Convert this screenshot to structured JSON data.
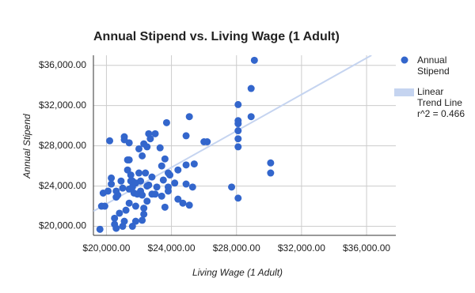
{
  "chart_data": {
    "type": "scatter",
    "title": "Annual Stipend vs. Living Wage (1 Adult)",
    "x_label": "Living Wage (1 Adult)",
    "y_label": "Annual Stipend",
    "xlim": [
      19200,
      37800
    ],
    "ylim": [
      19100,
      37000
    ],
    "xticks": [
      {
        "value": 20000,
        "label": "$20,000.00"
      },
      {
        "value": 24000,
        "label": "$24,000.00"
      },
      {
        "value": 28000,
        "label": "$28,000.00"
      },
      {
        "value": 32000,
        "label": "$32,000.00"
      },
      {
        "value": 36000,
        "label": "$36,000.00"
      }
    ],
    "yticks": [
      {
        "value": 20000,
        "label": "$20,000.00"
      },
      {
        "value": 24000,
        "label": "$24,000.00"
      },
      {
        "value": 28000,
        "label": "$28,000.00"
      },
      {
        "value": 32000,
        "label": "$32,000.00"
      },
      {
        "value": 36000,
        "label": "$36,000.00"
      }
    ],
    "grid": true,
    "legend": "right",
    "series": [
      {
        "name": "Annual Stipend",
        "color": "#3366cc",
        "x": [
          29100,
          28900,
          28900,
          28100,
          28100,
          28100,
          28100,
          28100,
          28100,
          28100,
          30100,
          30100,
          27700,
          26200,
          26000,
          25100,
          24900,
          24900,
          25400,
          23700,
          23000,
          23300,
          23600,
          23400,
          23500,
          23800,
          23800,
          23600,
          23400,
          23800,
          23900,
          24200,
          24900,
          25300,
          24400,
          24700,
          25100,
          22700,
          22600,
          22500,
          22300,
          22200,
          22000,
          21400,
          21100,
          21100,
          20200,
          21300,
          21300,
          21400,
          21400,
          21500,
          21600,
          21700,
          21800,
          22100,
          22100,
          22000,
          21900,
          22300,
          22800,
          23000,
          23100,
          22600,
          22500,
          22200,
          22500,
          22300,
          22200,
          21800,
          21600,
          21100,
          21200,
          21000,
          20900,
          20700,
          20600,
          20300,
          20600,
          20500,
          20300,
          20100,
          19700,
          19900,
          19800,
          19600,
          20500,
          20600,
          20800,
          21000,
          21400,
          21600,
          21800,
          21500,
          24400,
          22400,
          22800
        ],
        "values": [
          36500,
          33700,
          30900,
          32100,
          30500,
          30200,
          29500,
          28700,
          27900,
          22800,
          26300,
          25300,
          23900,
          28400,
          28400,
          30900,
          29000,
          26100,
          26200,
          30300,
          29200,
          27800,
          26700,
          26000,
          24600,
          23900,
          23500,
          21900,
          23000,
          25300,
          25100,
          24300,
          24200,
          23900,
          22700,
          22300,
          22100,
          28700,
          29200,
          27900,
          28200,
          27000,
          27700,
          28300,
          28900,
          28600,
          28500,
          26600,
          25600,
          23700,
          26600,
          24500,
          23900,
          23300,
          22000,
          24500,
          23500,
          25300,
          23200,
          21800,
          23200,
          23200,
          23900,
          24100,
          24000,
          23100,
          22500,
          21200,
          20600,
          20500,
          20000,
          20500,
          21600,
          23800,
          24500,
          23100,
          22900,
          24800,
          23500,
          20800,
          24200,
          23500,
          22000,
          22000,
          23300,
          19700,
          20200,
          19800,
          21300,
          20000,
          22300,
          24500,
          24300,
          25100,
          25600,
          25300,
          24900
        ]
      },
      {
        "name": "Linear Trend Line",
        "color": "#c5d4f0",
        "x": [
          19200,
          36300
        ],
        "values": [
          21500,
          37000
        ]
      }
    ],
    "annotation": "r^2 = 0.466"
  }
}
